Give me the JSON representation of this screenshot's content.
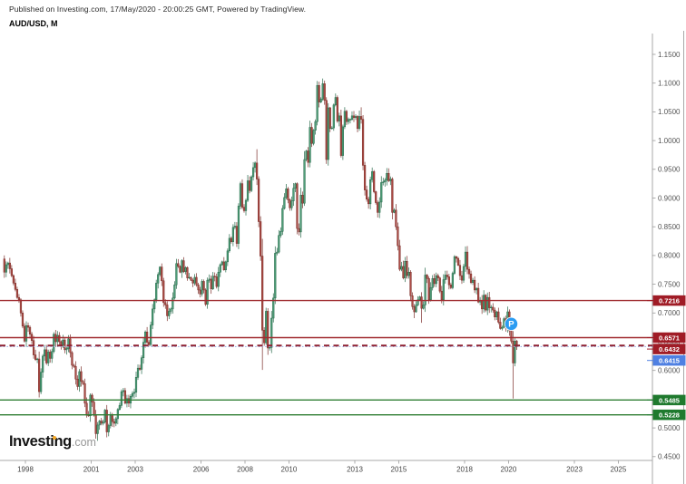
{
  "header": {
    "published": "Published on Investing.com, 17/May/2020 - 20:00:25 GMT, Powered by TradingView.",
    "symbol": "AUD/USD, M"
  },
  "logo": {
    "name": "Investing",
    "tld": ".com"
  },
  "colors": {
    "up_fill": "#4e9e78",
    "up_border": "#276a4b",
    "down_fill": "#ad4b45",
    "down_border": "#7c2f2a",
    "axis_line": "#a8a8a8",
    "tick_text": "#555555",
    "year_text": "#444444",
    "resistance_line": "#a02c30",
    "support_line": "#2e7d32",
    "dashed_line": "#8e2132",
    "current_line": "#9db3e8",
    "resistance_badge": "#a01c26",
    "support_badge": "#1f7a2e",
    "current_badge": "#4f80e2",
    "marker_fill": "#2b9cf2",
    "marker_text": "#ffffff",
    "badge_text": "#ffffff"
  },
  "price_axis": {
    "ticks": [
      "1.1500",
      "1.1000",
      "1.0500",
      "1.0000",
      "0.9500",
      "0.9000",
      "0.8500",
      "0.8000",
      "0.7500",
      "0.7000",
      "0.6500",
      "0.6000",
      "0.5500",
      "0.5000",
      "0.4500"
    ]
  },
  "time_axis": {
    "years": [
      "1998",
      "2001",
      "2003",
      "2006",
      "2008",
      "2010",
      "2013",
      "2015",
      "2018",
      "2020",
      "2023",
      "2025"
    ]
  },
  "levels": [
    {
      "price": 0.7216,
      "label": "0.7216",
      "style": "solid",
      "role": "resistance"
    },
    {
      "price": 0.6571,
      "label": "0.6571",
      "style": "solid",
      "role": "resistance"
    },
    {
      "price": 0.6432,
      "label": "0.6432",
      "style": "dashed",
      "role": "resistance"
    },
    {
      "price": 0.5485,
      "label": "0.5485",
      "style": "solid",
      "role": "support"
    },
    {
      "price": 0.5228,
      "label": "0.5228",
      "style": "solid",
      "role": "support"
    }
  ],
  "current_price": {
    "price": 0.6415,
    "label": "0.6415"
  },
  "marker": {
    "label": "P",
    "date": "2020-02",
    "price": 0.681
  },
  "chart_data": {
    "type": "candlestick",
    "symbol": "AUD/USD",
    "interval": "Monthly",
    "title": "AUD/USD, M",
    "y_axis": {
      "min": 0.45,
      "max": 1.15,
      "tick_step": 0.05,
      "side": "right"
    },
    "x_axis": {
      "start": "1997-01",
      "end": "2027-06",
      "visible_years": [
        1998,
        2001,
        2003,
        2006,
        2008,
        2010,
        2013,
        2015,
        2018,
        2020,
        2023,
        2025
      ]
    },
    "grid": false,
    "start": "1997-01",
    "first_open": 0.794,
    "closes": [
      0.771,
      0.784,
      0.787,
      0.777,
      0.765,
      0.752,
      0.741,
      0.727,
      0.723,
      0.7,
      0.677,
      0.651,
      0.678,
      0.675,
      0.663,
      0.652,
      0.627,
      0.619,
      0.62,
      0.563,
      0.597,
      0.625,
      0.636,
      0.613,
      0.632,
      0.621,
      0.633,
      0.663,
      0.65,
      0.661,
      0.65,
      0.644,
      0.653,
      0.636,
      0.638,
      0.655,
      0.631,
      0.609,
      0.607,
      0.585,
      0.572,
      0.598,
      0.581,
      0.577,
      0.543,
      0.522,
      0.521,
      0.557,
      0.545,
      0.522,
      0.49,
      0.505,
      0.512,
      0.508,
      0.51,
      0.531,
      0.493,
      0.504,
      0.521,
      0.511,
      0.508,
      0.516,
      0.532,
      0.539,
      0.563,
      0.565,
      0.543,
      0.551,
      0.543,
      0.555,
      0.56,
      0.562,
      0.588,
      0.604,
      0.602,
      0.622,
      0.649,
      0.667,
      0.649,
      0.645,
      0.679,
      0.707,
      0.723,
      0.752,
      0.767,
      0.78,
      0.756,
      0.718,
      0.714,
      0.695,
      0.703,
      0.707,
      0.726,
      0.749,
      0.786,
      0.781,
      0.771,
      0.791,
      0.772,
      0.779,
      0.761,
      0.762,
      0.757,
      0.752,
      0.762,
      0.749,
      0.74,
      0.733,
      0.755,
      0.74,
      0.715,
      0.757,
      0.759,
      0.742,
      0.764,
      0.763,
      0.746,
      0.771,
      0.784,
      0.789,
      0.775,
      0.789,
      0.808,
      0.83,
      0.824,
      0.849,
      0.851,
      0.821,
      0.886,
      0.925,
      0.884,
      0.878,
      0.896,
      0.93,
      0.913,
      0.937,
      0.953,
      0.961,
      0.933,
      0.859,
      0.799,
      0.67,
      0.648,
      0.703,
      0.639,
      0.64,
      0.691,
      0.726,
      0.804,
      0.806,
      0.835,
      0.842,
      0.882,
      0.901,
      0.916,
      0.897,
      0.883,
      0.895,
      0.917,
      0.925,
      0.847,
      0.841,
      0.905,
      0.891,
      0.967,
      0.982,
      0.962,
      1.023,
      0.995,
      1.018,
      1.033,
      1.096,
      1.067,
      1.072,
      1.099,
      1.07,
      0.967,
      1.057,
      1.021,
      1.022,
      1.062,
      1.075,
      1.034,
      1.043,
      0.974,
      1.024,
      1.051,
      1.033,
      1.037,
      1.037,
      1.043,
      1.04,
      1.042,
      1.021,
      1.042,
      1.037,
      0.957,
      0.914,
      0.898,
      0.89,
      0.932,
      0.946,
      0.911,
      0.892,
      0.875,
      0.893,
      0.927,
      0.928,
      0.931,
      0.943,
      0.93,
      0.933,
      0.875,
      0.879,
      0.85,
      0.817,
      0.776,
      0.781,
      0.761,
      0.79,
      0.765,
      0.771,
      0.73,
      0.711,
      0.702,
      0.714,
      0.723,
      0.728,
      0.708,
      0.714,
      0.766,
      0.76,
      0.723,
      0.744,
      0.76,
      0.751,
      0.765,
      0.761,
      0.738,
      0.723,
      0.758,
      0.766,
      0.763,
      0.749,
      0.744,
      0.769,
      0.798,
      0.795,
      0.783,
      0.765,
      0.757,
      0.781,
      0.806,
      0.776,
      0.768,
      0.753,
      0.757,
      0.74,
      0.743,
      0.719,
      0.722,
      0.707,
      0.731,
      0.705,
      0.727,
      0.709,
      0.71,
      0.705,
      0.693,
      0.702,
      0.684,
      0.673,
      0.675,
      0.69,
      0.676,
      0.702,
      0.669,
      0.651,
      0.613,
      0.651,
      0.6415
    ],
    "wick_overrides": {
      "1998-08": {
        "low": 0.553
      },
      "2001-04": {
        "low": 0.4775
      },
      "2008-07": {
        "high": 0.985
      },
      "2008-10": {
        "low": 0.601,
        "high": 0.829
      },
      "2011-07": {
        "high": 1.108
      },
      "2013-04": {
        "high": 1.058
      },
      "2015-09": {
        "low": 0.691
      },
      "2016-01": {
        "low": 0.683
      },
      "2020-03": {
        "low": 0.551,
        "high": 0.6685
      }
    }
  }
}
